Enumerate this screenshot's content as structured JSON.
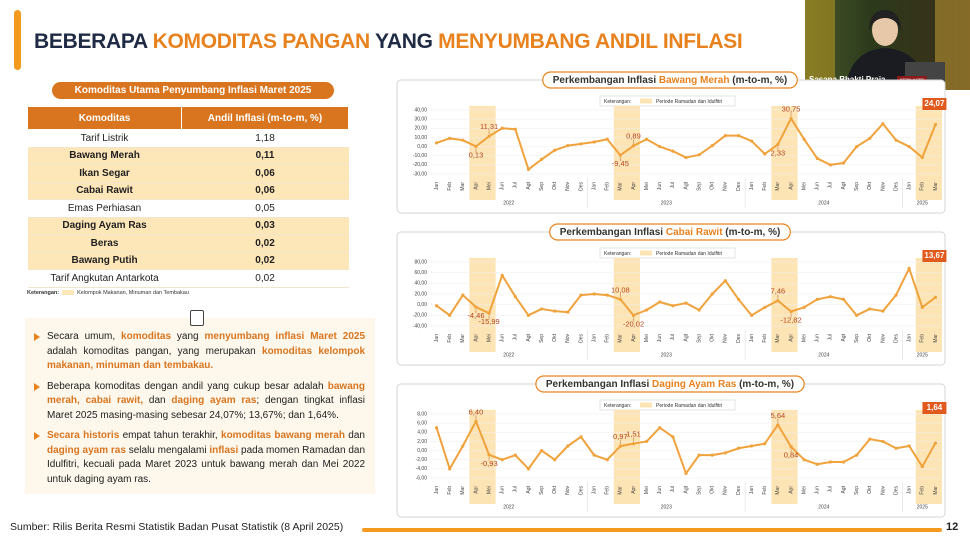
{
  "title": [
    "BEBERAPA ",
    "KOMODITAS PANGAN",
    " YANG ",
    "MENYUMBANG ANDIL INFLASI"
  ],
  "webcam": {
    "location": "Sasana Bhakti Praja",
    "role": "KEPALA BPS"
  },
  "table": {
    "title": "Komoditas Utama Penyumbang Inflasi Maret 2025",
    "header": [
      "Komoditas",
      "Andil Inflasi (m-to-m, %)"
    ],
    "rows": [
      {
        "name": "Tarif Listrik",
        "value": "1,18"
      },
      {
        "name": "Bawang Merah",
        "value": "0,11",
        "group": true
      },
      {
        "name": "Ikan Segar",
        "value": "0,06",
        "group": true
      },
      {
        "name": "Cabai Rawit",
        "value": "0,06",
        "group": true
      },
      {
        "name": "Emas Perhiasan",
        "value": "0,05"
      },
      {
        "name": "Daging Ayam Ras",
        "value": "0,03",
        "group": true
      },
      {
        "name": "Beras",
        "value": "0,02",
        "group": true
      },
      {
        "name": "Bawang Putih",
        "value": "0,02",
        "group": true
      },
      {
        "name": "Tarif Angkutan Antarkota",
        "value": "0,02"
      }
    ],
    "note": {
      "title": "Keterangan:",
      "label": "Kelompok Makanan, Minuman dan Tembakau"
    }
  },
  "notes": {
    "bullets": [
      [
        {
          "text": "Secara umum, "
        },
        {
          "text": "komoditas",
          "bold": true
        },
        {
          "text": " yang "
        },
        {
          "text": "menyumbang inflasi Maret 2025",
          "bold": true
        },
        {
          "text": " adalah komoditas pangan, yang merupakan "
        },
        {
          "text": "komoditas kelompok makanan, minuman dan tembakau.",
          "bold": true
        }
      ],
      [
        {
          "text": "Beberapa komoditas dengan andil yang cukup besar adalah "
        },
        {
          "text": "bawang merah, cabai rawit,",
          "bold": true
        },
        {
          "text": " dan "
        },
        {
          "text": "daging ayam ras",
          "bold": true
        },
        {
          "text": "; dengan tingkat inflasi Maret 2025 masing-masing sebesar 24,07%; 13,67%; dan 1,64%."
        }
      ],
      [
        {
          "text": "Secara historis",
          "bold": true
        },
        {
          "text": " empat tahun terakhir, "
        },
        {
          "text": "komoditas bawang merah",
          "bold": true
        },
        {
          "text": " dan "
        },
        {
          "text": "daging ayam ras",
          "bold": true
        },
        {
          "text": " selalu mengalami "
        },
        {
          "text": "inflasi",
          "bold": true
        },
        {
          "text": " pada momen Ramadan dan Idulfitri, kecuali pada Maret 2023 untuk bawang merah dan Mei 2022 untuk daging ayam ras."
        }
      ]
    ]
  },
  "footer": {
    "source": "Sumber: Rilis Berita Resmi Statistik Badan Pusat Statistik (8 April 2025)",
    "page": "12"
  },
  "chart_data": [
    {
      "type": "line",
      "title": [
        "Perkembangan Inflasi ",
        "Bawang Merah",
        " (m-to-m, %)"
      ],
      "legend": {
        "title": "Keterangan:",
        "label": "Periode Ramadan dan Idulfitri"
      },
      "categories": [
        "Jan",
        "Feb",
        "Mar",
        "Apr",
        "Mei",
        "Jun",
        "Jul",
        "Agt",
        "Sep",
        "Okt",
        "Nov",
        "Des",
        "Jan",
        "Feb",
        "Mar",
        "Apr",
        "Mei",
        "Jun",
        "Jul",
        "Agt",
        "Sep",
        "Okt",
        "Nov",
        "Des",
        "Jan",
        "Feb",
        "Mar",
        "Apr",
        "Mei",
        "Jun",
        "Jul",
        "Agt",
        "Sep",
        "Okt",
        "Nov",
        "Des",
        "Jan",
        "Feb",
        "Mar"
      ],
      "years": [
        "2022",
        "2023",
        "2024",
        "2025"
      ],
      "values": [
        4,
        9,
        7,
        0.13,
        11.31,
        20,
        19,
        -25,
        -14,
        -4,
        1,
        3,
        5,
        8,
        -9.45,
        0.89,
        8,
        0,
        -5,
        -12,
        -9,
        1,
        12,
        12,
        6,
        -8,
        2.33,
        30.75,
        8,
        -13,
        -20,
        -18,
        0,
        9,
        25,
        7,
        0,
        -12,
        24.07
      ],
      "value_labels": [
        null,
        null,
        null,
        "0,13",
        "11,31",
        null,
        null,
        null,
        null,
        null,
        null,
        null,
        null,
        null,
        "-9,45",
        "0,89",
        null,
        null,
        null,
        null,
        null,
        null,
        null,
        null,
        null,
        null,
        "2,33",
        "30,75",
        null,
        null,
        null,
        null,
        null,
        null,
        null,
        null,
        null,
        null,
        "24,07"
      ],
      "ramadan_periods": [
        [
          3,
          4
        ],
        [
          14,
          15
        ],
        [
          26,
          27
        ],
        [
          37,
          38
        ]
      ],
      "color": "#f0a23c",
      "highlight_color": "#fde4b4",
      "grid": true,
      "ylim": [
        -30,
        40
      ],
      "yticks": [
        {
          "value": -30,
          "label": "-30,00"
        },
        {
          "value": -20,
          "label": "-20,00"
        },
        {
          "value": -10,
          "label": "-10,00"
        },
        {
          "value": 0,
          "label": "0,00"
        },
        {
          "value": 10,
          "label": "10,00"
        },
        {
          "value": 20,
          "label": "20,00"
        },
        {
          "value": 30,
          "label": "30,00"
        },
        {
          "value": 40,
          "label": "40,00"
        }
      ]
    },
    {
      "type": "line",
      "title": [
        "Perkembangan Inflasi ",
        "Cabai Rawit",
        " (m-to-m, %)"
      ],
      "legend": {
        "title": "Keterangan:",
        "label": "Periode Ramadan dan Idulfitri"
      },
      "categories": [
        "Jan",
        "Feb",
        "Mar",
        "Apr",
        "Mei",
        "Jun",
        "Jul",
        "Agt",
        "Sep",
        "Okt",
        "Nov",
        "Des",
        "Jan",
        "Feb",
        "Mar",
        "Apr",
        "Mei",
        "Jun",
        "Jul",
        "Agt",
        "Sep",
        "Okt",
        "Nov",
        "Des",
        "Jan",
        "Feb",
        "Mar",
        "Apr",
        "Mei",
        "Jun",
        "Jul",
        "Agt",
        "Sep",
        "Okt",
        "Nov",
        "Des",
        "Jan",
        "Feb",
        "Mar"
      ],
      "years": [
        "2022",
        "2023",
        "2024",
        "2025"
      ],
      "values": [
        -2,
        -20,
        18,
        -4.46,
        -15.99,
        55,
        15,
        -20,
        -8,
        -12,
        -14,
        18,
        20,
        18,
        10.08,
        -20.02,
        -10,
        5,
        -2,
        3,
        -10,
        20,
        45,
        10,
        -20,
        -5,
        7.46,
        -12.82,
        -5,
        10,
        15,
        10,
        -20,
        -8,
        -12,
        18,
        68,
        -5,
        13.67
      ],
      "value_labels": [
        null,
        null,
        null,
        "-4,46",
        "-15,99",
        null,
        null,
        null,
        null,
        null,
        null,
        null,
        null,
        null,
        "10,08",
        "-20,02",
        null,
        null,
        null,
        null,
        null,
        null,
        null,
        null,
        null,
        null,
        "7,46",
        "-12,82",
        null,
        null,
        null,
        null,
        null,
        null,
        null,
        null,
        null,
        null,
        "13,67"
      ],
      "ramadan_periods": [
        [
          3,
          4
        ],
        [
          14,
          15
        ],
        [
          26,
          27
        ],
        [
          37,
          38
        ]
      ],
      "color": "#f0a23c",
      "highlight_color": "#fde4b4",
      "grid": true,
      "ylim": [
        -40,
        80
      ],
      "yticks": [
        {
          "value": -40,
          "label": "-40,00"
        },
        {
          "value": -20,
          "label": "-20,00"
        },
        {
          "value": 0,
          "label": "0,00"
        },
        {
          "value": 20,
          "label": "20,00"
        },
        {
          "value": 40,
          "label": "40,00"
        },
        {
          "value": 60,
          "label": "60,00"
        },
        {
          "value": 80,
          "label": "80,00"
        }
      ]
    },
    {
      "type": "line",
      "title": [
        "Perkembangan Inflasi ",
        "Daging Ayam Ras",
        " (m-to-m, %)"
      ],
      "legend": {
        "title": "Keterangan:",
        "label": "Periode Ramadan dan Idulfitri"
      },
      "categories": [
        "Jan",
        "Feb",
        "Mar",
        "Apr",
        "Mei",
        "Jun",
        "Jul",
        "Agt",
        "Sep",
        "Okt",
        "Nov",
        "Des",
        "Jan",
        "Feb",
        "Mar",
        "Apr",
        "Mei",
        "Jun",
        "Jul",
        "Agt",
        "Sep",
        "Okt",
        "Nov",
        "Des",
        "Jan",
        "Feb",
        "Mar",
        "Apr",
        "Mei",
        "Jun",
        "Jul",
        "Agt",
        "Sep",
        "Okt",
        "Nov",
        "Des",
        "Jan",
        "Feb",
        "Mar"
      ],
      "years": [
        "2022",
        "2023",
        "2024",
        "2025"
      ],
      "values": [
        5,
        -4,
        1,
        6.4,
        -0.93,
        -2,
        -1,
        -4,
        0,
        -2,
        1,
        3,
        -1,
        -2,
        0.97,
        1.51,
        2,
        5,
        3,
        -5,
        -1,
        -1,
        -0.5,
        0.5,
        1,
        1.5,
        5.64,
        0.84,
        -2,
        -3,
        -2.5,
        -2.5,
        -1,
        2.5,
        2,
        0.5,
        1,
        -3.5,
        1.64
      ],
      "value_labels": [
        null,
        null,
        null,
        "6,40",
        "-0,93",
        null,
        null,
        null,
        null,
        null,
        null,
        null,
        null,
        null,
        "0,97",
        "1,51",
        null,
        null,
        null,
        null,
        null,
        null,
        null,
        null,
        null,
        null,
        "5,64",
        "0,84",
        null,
        null,
        null,
        null,
        null,
        null,
        null,
        null,
        null,
        null,
        "1,64"
      ],
      "ramadan_periods": [
        [
          3,
          4
        ],
        [
          14,
          15
        ],
        [
          26,
          27
        ],
        [
          37,
          38
        ]
      ],
      "color": "#f0a23c",
      "highlight_color": "#fde4b4",
      "grid": true,
      "ylim": [
        -6,
        8
      ],
      "yticks": [
        {
          "value": -6,
          "label": "-6,00"
        },
        {
          "value": -4,
          "label": "-4,00"
        },
        {
          "value": -2,
          "label": "-2,00"
        },
        {
          "value": 0,
          "label": "0,00"
        },
        {
          "value": 2,
          "label": "2,00"
        },
        {
          "value": 4,
          "label": "4,00"
        },
        {
          "value": 6,
          "label": "6,00"
        },
        {
          "value": 8,
          "label": "8,00"
        }
      ]
    }
  ]
}
